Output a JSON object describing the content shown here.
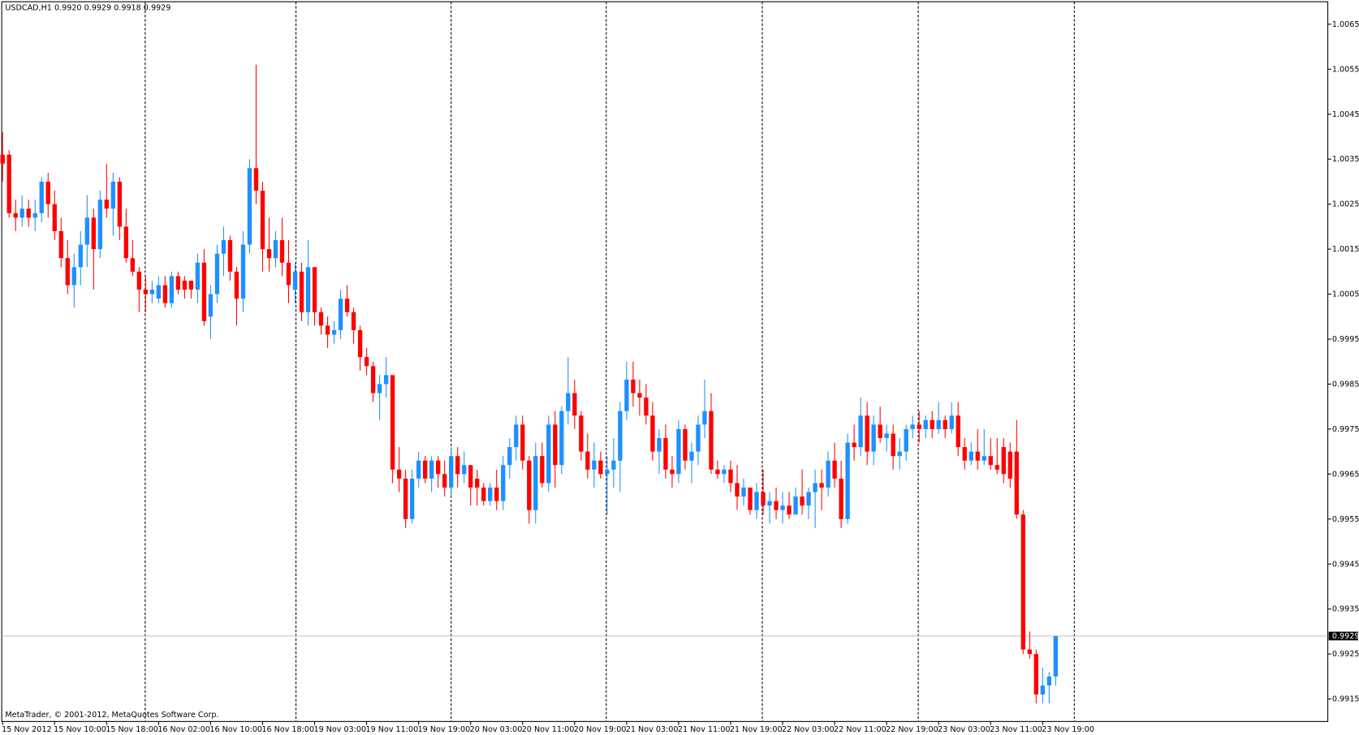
{
  "chart_data": {
    "type": "candlestick",
    "title": "USDCAD,H1  0.9920 0.9929 0.9918 0.9929",
    "footer": "MetaTrader, © 2001-2012, MetaQuotes Software Corp.",
    "up_color": "#1e90ff",
    "down_color": "#ff0000",
    "ylim": [
      0.991,
      1.007
    ],
    "yticks": [
      0.9915,
      0.9925,
      0.9935,
      0.9945,
      0.9955,
      0.9965,
      0.9975,
      0.9985,
      0.9995,
      1.0005,
      1.0015,
      1.0025,
      1.0035,
      1.0045,
      1.0055,
      1.0065
    ],
    "price_line": 0.9929,
    "categories": [
      "15 Nov 2012",
      null,
      null,
      null,
      null,
      null,
      null,
      null,
      "15 Nov 10:00",
      null,
      null,
      null,
      null,
      null,
      null,
      null,
      "15 Nov 18:00",
      null,
      null,
      null,
      null,
      null,
      null,
      null,
      "16 Nov 02:00",
      null,
      null,
      null,
      null,
      null,
      null,
      null,
      "16 Nov 10:00",
      null,
      null,
      null,
      null,
      null,
      null,
      null,
      "16 Nov 18:00",
      null,
      null,
      null,
      null,
      null,
      null,
      null,
      "19 Nov 03:00",
      null,
      null,
      null,
      null,
      null,
      null,
      null,
      "19 Nov 11:00",
      null,
      null,
      null,
      null,
      null,
      null,
      null,
      "19 Nov 19:00",
      null,
      null,
      null,
      null,
      null,
      null,
      null,
      "20 Nov 03:00",
      null,
      null,
      null,
      null,
      null,
      null,
      null,
      "20 Nov 11:00",
      null,
      null,
      null,
      null,
      null,
      null,
      null,
      "20 Nov 19:00",
      null,
      null,
      null,
      null,
      null,
      null,
      null,
      "21 Nov 03:00",
      null,
      null,
      null,
      null,
      null,
      null,
      null,
      "21 Nov 11:00",
      null,
      null,
      null,
      null,
      null,
      null,
      null,
      "21 Nov 19:00",
      null,
      null,
      null,
      null,
      null,
      null,
      null,
      "22 Nov 03:00",
      null,
      null,
      null,
      null,
      null,
      null,
      null,
      "22 Nov 11:00",
      null,
      null,
      null,
      null,
      null,
      null,
      null,
      "22 Nov 19:00",
      null,
      null,
      null,
      null,
      null,
      null,
      null,
      "23 Nov 03:00",
      null,
      null,
      null,
      null,
      null,
      null,
      null,
      "23 Nov 11:00",
      null,
      null,
      null,
      null,
      null,
      null,
      null,
      "23 Nov 19:00",
      null,
      null
    ],
    "candles": [
      [
        1.0036,
        1.0041,
        1.003,
        1.0034
      ],
      [
        1.0036,
        1.0037,
        1.0022,
        1.0023
      ],
      [
        1.0023,
        1.0026,
        1.0019,
        1.0022
      ],
      [
        1.0022,
        1.0027,
        1.002,
        1.0024
      ],
      [
        1.0024,
        1.0026,
        1.002,
        1.0022
      ],
      [
        1.0022,
        1.0026,
        1.0019,
        1.0023
      ],
      [
        1.0023,
        1.0031,
        1.0021,
        1.003
      ],
      [
        1.003,
        1.0032,
        1.0022,
        1.0025
      ],
      [
        1.0025,
        1.0028,
        1.0017,
        1.0019
      ],
      [
        1.0019,
        1.0022,
        1.0011,
        1.0013
      ],
      [
        1.0013,
        1.0017,
        1.0005,
        1.0007
      ],
      [
        1.0007,
        1.0014,
        1.0002,
        1.0011
      ],
      [
        1.0011,
        1.0019,
        1.0007,
        1.0016
      ],
      [
        1.0016,
        1.0027,
        1.0011,
        1.0022
      ],
      [
        1.0022,
        1.0024,
        1.0006,
        1.0015
      ],
      [
        1.0015,
        1.0028,
        1.0013,
        1.0026
      ],
      [
        1.0026,
        1.0034,
        1.0022,
        1.0024
      ],
      [
        1.0024,
        1.0032,
        1.0018,
        1.003
      ],
      [
        1.003,
        1.0031,
        1.0017,
        1.002
      ],
      [
        1.002,
        1.0024,
        1.0012,
        1.0013
      ],
      [
        1.0013,
        1.0017,
        1.0009,
        1.001
      ],
      [
        1.001,
        1.0011,
        1.0001,
        1.0006
      ],
      [
        1.0006,
        1.0009,
        1.0001,
        1.0005
      ],
      [
        1.0005,
        1.0008,
        1.0003,
        1.0006
      ],
      [
        1.0004,
        1.0009,
        1.0003,
        1.0007
      ],
      [
        1.0007,
        1.0009,
        1.0002,
        1.0003
      ],
      [
        1.0003,
        1.001,
        1.0002,
        1.0009
      ],
      [
        1.0009,
        1.001,
        1.0005,
        1.0006
      ],
      [
        1.0008,
        1.0009,
        1.0004,
        1.0006
      ],
      [
        1.0008,
        1.0008,
        1.0004,
        1.0006
      ],
      [
        1.0006,
        1.0014,
        1.0003,
        1.0012
      ],
      [
        1.0012,
        1.0015,
        0.9998,
        0.9999
      ],
      [
        1.0,
        1.0007,
        0.9995,
        1.0005
      ],
      [
        1.0005,
        1.0016,
        1.0003,
        1.0014
      ],
      [
        1.0014,
        1.002,
        1.0009,
        1.0017
      ],
      [
        1.0017,
        1.0018,
        1.0008,
        1.001
      ],
      [
        1.001,
        1.0011,
        0.9998,
        1.0004
      ],
      [
        1.0004,
        1.0019,
        1.0001,
        1.0016
      ],
      [
        1.0016,
        1.0035,
        1.0014,
        1.0033
      ],
      [
        1.0033,
        1.0056,
        1.0025,
        1.0028
      ],
      [
        1.0028,
        1.003,
        1.001,
        1.0015
      ],
      [
        1.0015,
        1.0022,
        1.001,
        1.0013
      ],
      [
        1.0013,
        1.0019,
        1.0011,
        1.0017
      ],
      [
        1.0017,
        1.0022,
        1.0009,
        1.0012
      ],
      [
        1.0012,
        1.0017,
        1.0003,
        1.0007
      ],
      [
        1.0006,
        1.0012,
        1.0003,
        1.001
      ],
      [
        1.001,
        1.0012,
        0.9999,
        1.0001
      ],
      [
        1.0001,
        1.0017,
        0.9998,
        1.0011
      ],
      [
        1.0011,
        1.0011,
        0.9998,
        1.0001
      ],
      [
        1.0001,
        1.0002,
        0.9996,
        0.9998
      ],
      [
        0.9998,
        1.0,
        0.9993,
        0.9996
      ],
      [
        0.9996,
        0.9999,
        0.9994,
        0.9997
      ],
      [
        0.9997,
        1.0006,
        0.9995,
        1.0004
      ],
      [
        1.0004,
        1.0007,
        1.0,
        1.0001
      ],
      [
        1.0001,
        1.0002,
        0.9994,
        0.9997
      ],
      [
        0.9997,
        0.9998,
        0.9988,
        0.9991
      ],
      [
        0.9991,
        0.9993,
        0.9987,
        0.9989
      ],
      [
        0.9989,
        0.999,
        0.9981,
        0.9983
      ],
      [
        0.9983,
        0.9987,
        0.9977,
        0.9985
      ],
      [
        0.9985,
        0.9991,
        0.9982,
        0.9987
      ],
      [
        0.9987,
        0.9987,
        0.9963,
        0.9966
      ],
      [
        0.9966,
        0.9971,
        0.9961,
        0.9964
      ],
      [
        0.9964,
        0.9966,
        0.9953,
        0.9955
      ],
      [
        0.9955,
        0.9966,
        0.9954,
        0.9964
      ],
      [
        0.9964,
        0.997,
        0.9962,
        0.9968
      ],
      [
        0.9968,
        0.9969,
        0.9963,
        0.9964
      ],
      [
        0.9964,
        0.9969,
        0.9961,
        0.9968
      ],
      [
        0.9968,
        0.9969,
        0.9962,
        0.9965
      ],
      [
        0.9965,
        0.9968,
        0.996,
        0.9962
      ],
      [
        0.9962,
        0.9971,
        0.996,
        0.9969
      ],
      [
        0.9969,
        0.9971,
        0.9962,
        0.9965
      ],
      [
        0.9965,
        0.997,
        0.9963,
        0.9967
      ],
      [
        0.9967,
        0.9967,
        0.9958,
        0.9962
      ],
      [
        0.9964,
        0.9966,
        0.9958,
        0.9962
      ],
      [
        0.9962,
        0.9963,
        0.9958,
        0.9959
      ],
      [
        0.9959,
        0.9963,
        0.9958,
        0.9962
      ],
      [
        0.9962,
        0.9966,
        0.9957,
        0.9959
      ],
      [
        0.9959,
        0.9969,
        0.9957,
        0.9967
      ],
      [
        0.9967,
        0.9973,
        0.9964,
        0.9971
      ],
      [
        0.9971,
        0.9978,
        0.9968,
        0.9976
      ],
      [
        0.9976,
        0.9978,
        0.9966,
        0.9968
      ],
      [
        0.9968,
        0.9969,
        0.9954,
        0.9957
      ],
      [
        0.9957,
        0.9972,
        0.9954,
        0.9969
      ],
      [
        0.9969,
        0.9972,
        0.9962,
        0.9963
      ],
      [
        0.9963,
        0.9978,
        0.9961,
        0.9976
      ],
      [
        0.9976,
        0.9979,
        0.9962,
        0.9967
      ],
      [
        0.9967,
        0.998,
        0.9965,
        0.9979
      ],
      [
        0.9979,
        0.9991,
        0.9976,
        0.9983
      ],
      [
        0.9983,
        0.9986,
        0.9975,
        0.9978
      ],
      [
        0.9978,
        0.9979,
        0.9968,
        0.997
      ],
      [
        0.997,
        0.9974,
        0.9964,
        0.9966
      ],
      [
        0.9966,
        0.9972,
        0.9962,
        0.9968
      ],
      [
        0.9968,
        0.997,
        0.9964,
        0.9965
      ],
      [
        0.9965,
        0.9969,
        0.9956,
        0.9966
      ],
      [
        0.9966,
        0.9973,
        0.9962,
        0.9968
      ],
      [
        0.9968,
        0.9981,
        0.9961,
        0.9979
      ],
      [
        0.9979,
        0.999,
        0.9977,
        0.9986
      ],
      [
        0.9986,
        0.999,
        0.998,
        0.9983
      ],
      [
        0.9983,
        0.9986,
        0.9978,
        0.9982
      ],
      [
        0.9982,
        0.9985,
        0.9976,
        0.9978
      ],
      [
        0.9978,
        0.9981,
        0.9968,
        0.997
      ],
      [
        0.997,
        0.9975,
        0.9965,
        0.9973
      ],
      [
        0.9973,
        0.9976,
        0.9964,
        0.9966
      ],
      [
        0.9966,
        0.9969,
        0.9962,
        0.9965
      ],
      [
        0.9965,
        0.9977,
        0.9963,
        0.9975
      ],
      [
        0.9975,
        0.9976,
        0.9966,
        0.9968
      ],
      [
        0.9968,
        0.9972,
        0.9963,
        0.997
      ],
      [
        0.997,
        0.9978,
        0.9967,
        0.9976
      ],
      [
        0.9976,
        0.9986,
        0.9973,
        0.9979
      ],
      [
        0.9979,
        0.9983,
        0.9965,
        0.9966
      ],
      [
        0.9966,
        0.9968,
        0.9964,
        0.9965
      ],
      [
        0.9965,
        0.9967,
        0.9963,
        0.9966
      ],
      [
        0.9966,
        0.9968,
        0.9961,
        0.9963
      ],
      [
        0.9963,
        0.9967,
        0.9957,
        0.996
      ],
      [
        0.996,
        0.9964,
        0.9958,
        0.9962
      ],
      [
        0.9962,
        0.9962,
        0.9956,
        0.9957
      ],
      [
        0.9957,
        0.9963,
        0.9955,
        0.9961
      ],
      [
        0.9961,
        0.9966,
        0.9956,
        0.9958
      ],
      [
        0.9958,
        0.9961,
        0.9954,
        0.9959
      ],
      [
        0.9959,
        0.9962,
        0.9955,
        0.9957
      ],
      [
        0.9957,
        0.9961,
        0.9954,
        0.9958
      ],
      [
        0.9958,
        0.9961,
        0.9955,
        0.9956
      ],
      [
        0.9956,
        0.9962,
        0.9956,
        0.996
      ],
      [
        0.996,
        0.9966,
        0.9956,
        0.9958
      ],
      [
        0.9958,
        0.9962,
        0.9955,
        0.9961
      ],
      [
        0.9961,
        0.9966,
        0.9953,
        0.9963
      ],
      [
        0.9963,
        0.9966,
        0.9957,
        0.9962
      ],
      [
        0.9962,
        0.997,
        0.996,
        0.9968
      ],
      [
        0.9968,
        0.9972,
        0.9962,
        0.9964
      ],
      [
        0.9964,
        0.9968,
        0.9953,
        0.9955
      ],
      [
        0.9955,
        0.9974,
        0.9954,
        0.9972
      ],
      [
        0.9972,
        0.9976,
        0.9968,
        0.9971
      ],
      [
        0.9971,
        0.9982,
        0.9969,
        0.9978
      ],
      [
        0.9978,
        0.9981,
        0.9967,
        0.997
      ],
      [
        0.997,
        0.9978,
        0.9967,
        0.9976
      ],
      [
        0.9976,
        0.998,
        0.9972,
        0.9973
      ],
      [
        0.9973,
        0.9976,
        0.997,
        0.9974
      ],
      [
        0.9974,
        0.9976,
        0.9966,
        0.9969
      ],
      [
        0.9969,
        0.9973,
        0.9966,
        0.997
      ],
      [
        0.997,
        0.9976,
        0.9968,
        0.9975
      ],
      [
        0.9975,
        0.9978,
        0.9973,
        0.9976
      ],
      [
        0.9976,
        0.9979,
        0.9972,
        0.9975
      ],
      [
        0.9975,
        0.9978,
        0.9973,
        0.9977
      ],
      [
        0.9977,
        0.9979,
        0.9973,
        0.9975
      ],
      [
        0.9975,
        0.9981,
        0.9974,
        0.9977
      ],
      [
        0.9977,
        0.9978,
        0.9973,
        0.9975
      ],
      [
        0.9975,
        0.9981,
        0.9974,
        0.9978
      ],
      [
        0.9978,
        0.9981,
        0.9969,
        0.9971
      ],
      [
        0.9971,
        0.9973,
        0.9966,
        0.9968
      ],
      [
        0.9968,
        0.9972,
        0.9967,
        0.997
      ],
      [
        0.997,
        0.9975,
        0.9966,
        0.9968
      ],
      [
        0.9968,
        0.9975,
        0.9967,
        0.9969
      ],
      [
        0.9969,
        0.9973,
        0.9966,
        0.9967
      ],
      [
        0.9967,
        0.9973,
        0.9965,
        0.9966
      ],
      [
        0.9971,
        0.9973,
        0.9963,
        0.9965
      ],
      [
        0.997,
        0.9972,
        0.9962,
        0.9964
      ],
      [
        0.997,
        0.9977,
        0.9955,
        0.9956
      ],
      [
        0.9956,
        0.9957,
        0.9925,
        0.9926
      ],
      [
        0.9926,
        0.993,
        0.9924,
        0.9925
      ],
      [
        0.9925,
        0.9926,
        0.9914,
        0.9916
      ],
      [
        0.9916,
        0.9922,
        0.9914,
        0.9918
      ],
      [
        0.9918,
        0.9921,
        0.9914,
        0.992
      ],
      [
        0.992,
        0.9929,
        0.9918,
        0.9929
      ]
    ]
  }
}
